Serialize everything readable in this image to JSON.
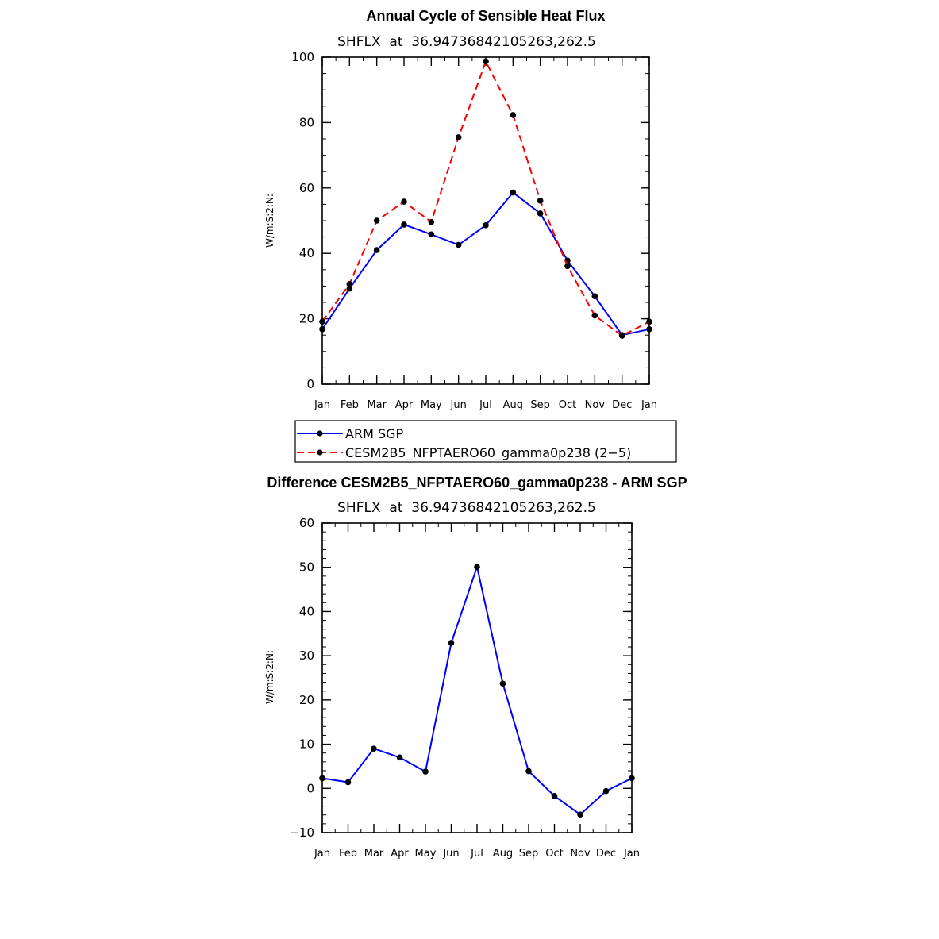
{
  "chart_data": [
    {
      "type": "line",
      "title": "Annual Cycle of Sensible Heat Flux",
      "subtitle": "SHFLX  at  36.94736842105263,262.5",
      "ylabel": "W/m:S:2:N:",
      "xlabel": "",
      "categories": [
        "Jan",
        "Feb",
        "Mar",
        "Apr",
        "May",
        "Jun",
        "Jul",
        "Aug",
        "Sep",
        "Oct",
        "Nov",
        "Dec",
        "Jan"
      ],
      "ylim": [
        0,
        100
      ],
      "yticks": [
        0,
        20,
        40,
        60,
        80,
        100
      ],
      "series": [
        {
          "name": "ARM SGP",
          "color": "#0000ff",
          "dash": "solid",
          "values": [
            16.8,
            29.2,
            41.0,
            48.8,
            45.8,
            42.6,
            48.6,
            58.6,
            52.2,
            37.8,
            26.9,
            15.0,
            16.8
          ]
        },
        {
          "name": "CESM2B5_NFPTAERO60_gamma0p238 (2-5)",
          "color": "#ff0000",
          "dash": "dashed",
          "values": [
            19.1,
            30.6,
            50.0,
            55.8,
            49.6,
            75.5,
            98.7,
            82.3,
            56.1,
            36.1,
            21.0,
            14.8,
            19.1
          ]
        }
      ],
      "legend": {
        "placement": "below",
        "entries": [
          "ARM SGP",
          "CESM2B5_NFPTAERO60_gamma0p238 (2−5)"
        ]
      }
    },
    {
      "type": "line",
      "title": "Difference CESM2B5_NFPTAERO60_gamma0p238 - ARM SGP",
      "subtitle": "SHFLX  at  36.94736842105263,262.5",
      "ylabel": "W/m:S:2:N:",
      "xlabel": "",
      "categories": [
        "Jan",
        "Feb",
        "Mar",
        "Apr",
        "May",
        "Jun",
        "Jul",
        "Aug",
        "Sep",
        "Oct",
        "Nov",
        "Dec",
        "Jan"
      ],
      "ylim": [
        -10,
        60
      ],
      "yticks": [
        -10,
        0,
        10,
        20,
        30,
        40,
        50,
        60
      ],
      "ytick_labels": [
        "−10",
        "0",
        "10",
        "20",
        "30",
        "40",
        "50",
        "60"
      ],
      "series": [
        {
          "name": "Difference",
          "color": "#0000ff",
          "dash": "solid",
          "values": [
            2.3,
            1.4,
            9.0,
            7.0,
            3.8,
            32.9,
            50.1,
            23.7,
            3.9,
            -1.7,
            -5.9,
            -0.6,
            2.3
          ]
        }
      ]
    }
  ]
}
